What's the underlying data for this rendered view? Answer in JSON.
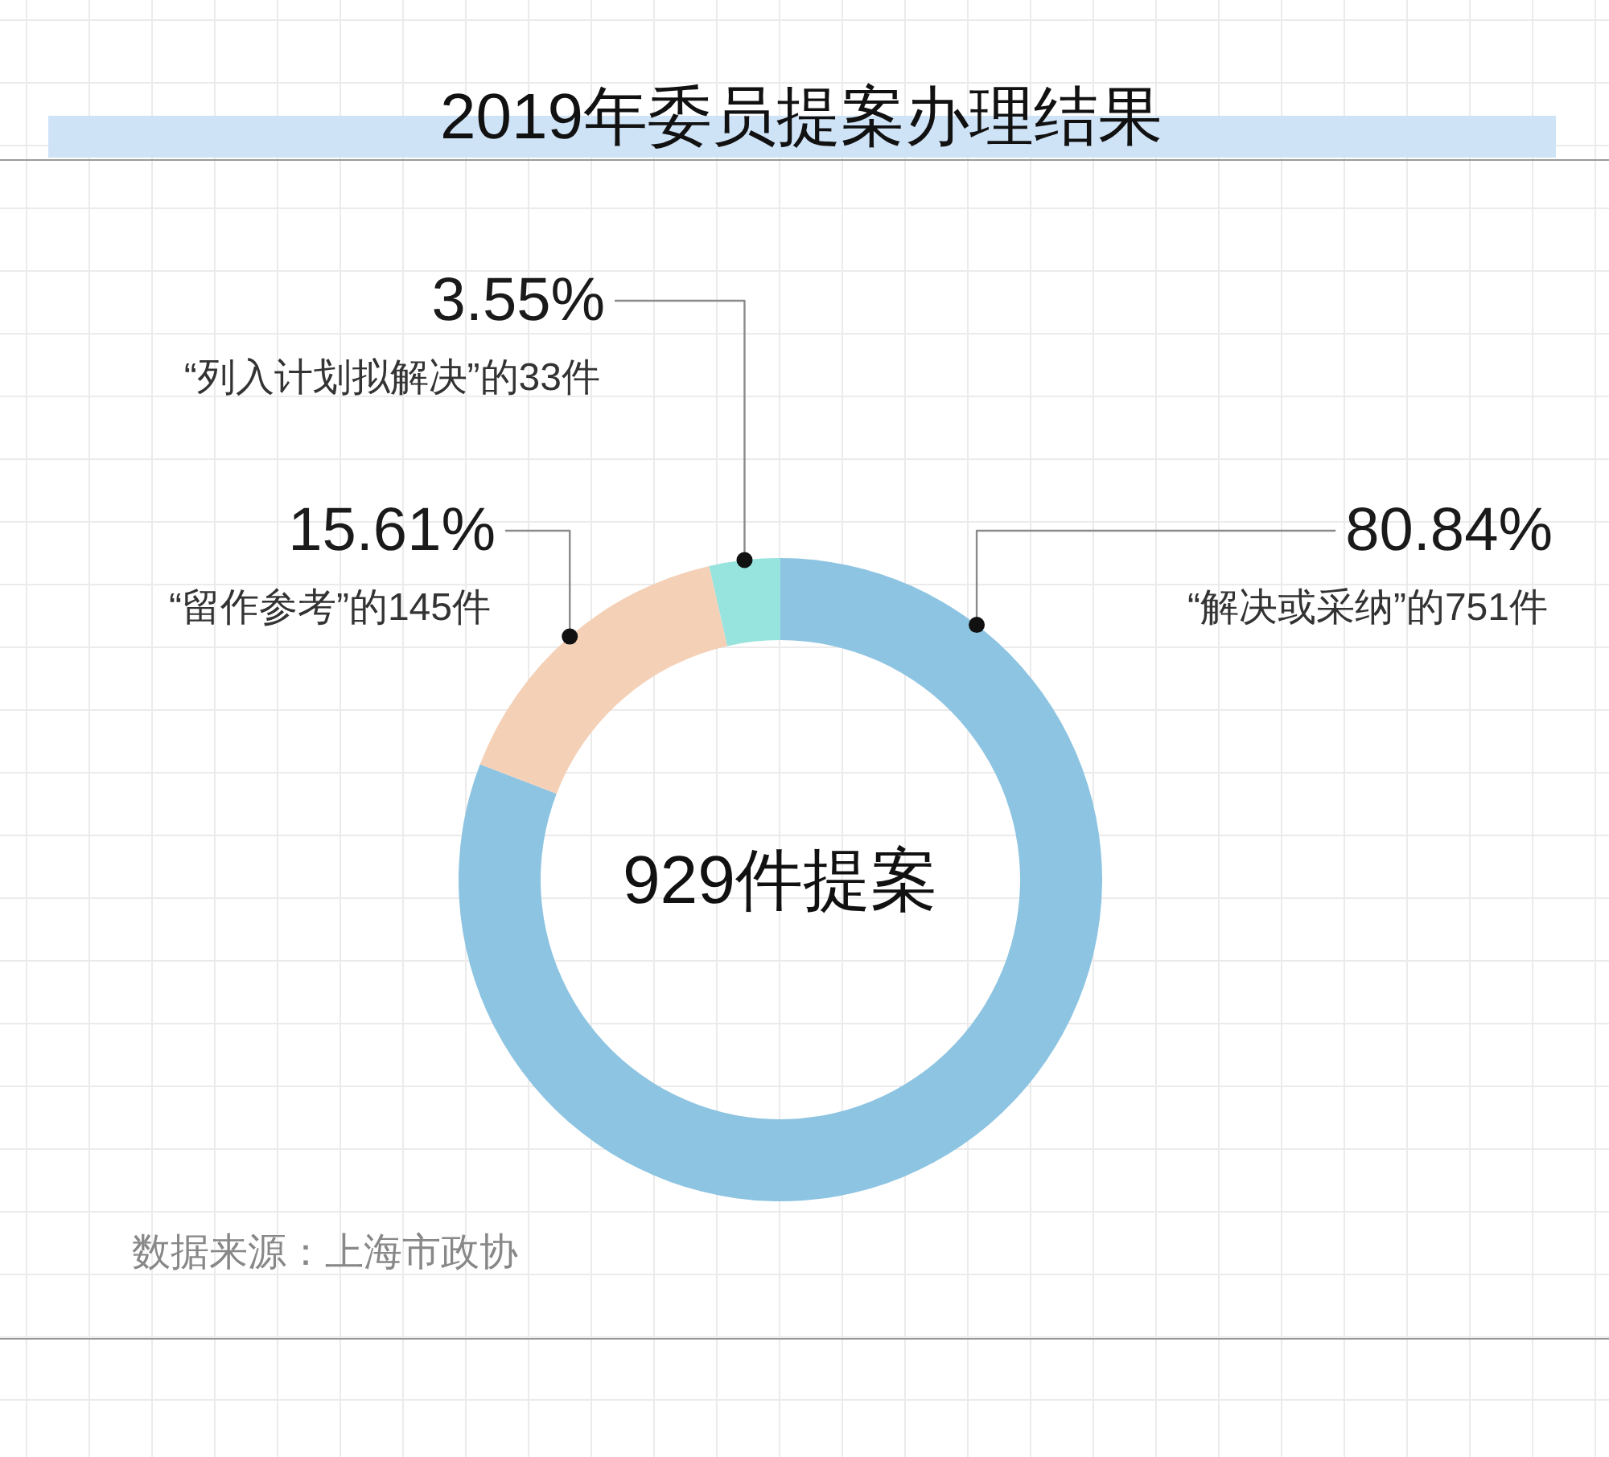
{
  "chart_data": {
    "type": "donut",
    "title": "2019年委员提案办理结果",
    "categories": [
      "“解决或采纳”的751件",
      "“留作参考”的145件",
      "“列入计划拟解决”的33件"
    ],
    "values": [
      80.84,
      15.61,
      3.55
    ],
    "colors": [
      "#8dc4e2",
      "#f4d0b6",
      "#97e3de"
    ],
    "value_labels": [
      "80.84%",
      "15.61%",
      "3.55%"
    ],
    "annotations": [
      "929件提案",
      "数据来源：上海市政协"
    ]
  }
}
